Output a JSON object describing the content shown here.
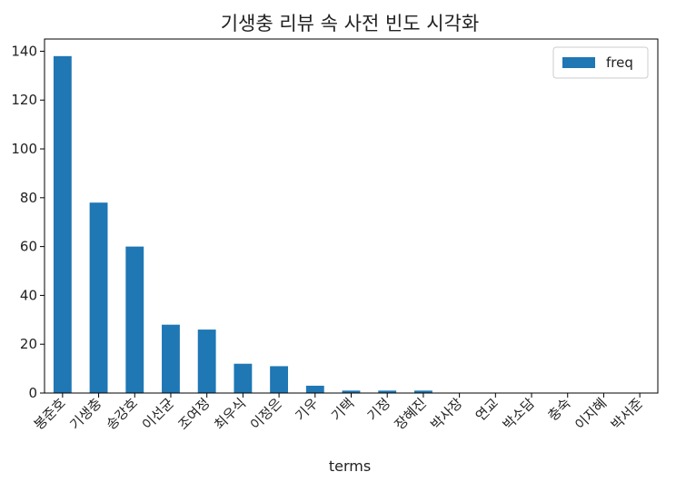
{
  "chart_data": {
    "type": "bar",
    "title": "기생충 리뷰 속 사전 빈도 시각화",
    "xlabel": "terms",
    "ylabel": "",
    "categories": [
      "봉준호",
      "기생충",
      "송강호",
      "이선균",
      "조여정",
      "최우식",
      "이정은",
      "기우",
      "기택",
      "기정",
      "장혜진",
      "박사장",
      "연교",
      "박소담",
      "충숙",
      "이지혜",
      "박서준"
    ],
    "series": [
      {
        "name": "freq",
        "values": [
          138,
          78,
          60,
          28,
          26,
          12,
          11,
          3,
          1,
          1,
          1,
          0,
          0,
          0,
          0,
          0,
          0
        ]
      }
    ],
    "ylim": [
      0,
      145
    ],
    "yticks": [
      0,
      20,
      40,
      60,
      80,
      100,
      120,
      140
    ],
    "legend_position": "top-right",
    "grid": false,
    "colors": {
      "bar": "#1f77b4",
      "axis": "#000000"
    }
  }
}
